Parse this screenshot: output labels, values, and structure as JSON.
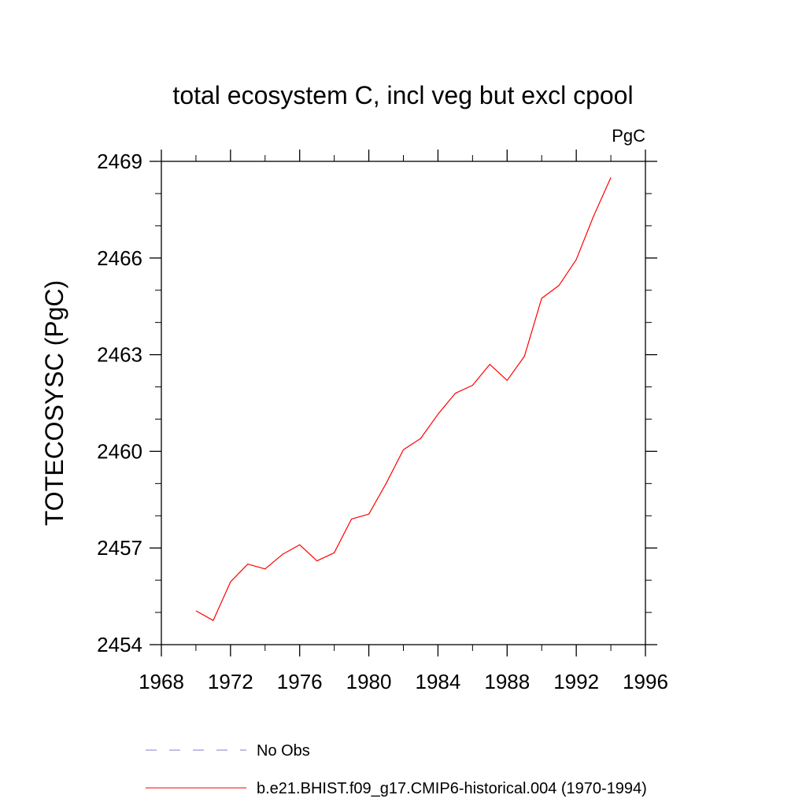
{
  "chart_data": {
    "type": "line",
    "title": "total ecosystem C, incl veg but excl cpool",
    "units": "PgC",
    "ylabel": "TOTECOSYSC  (PgC)",
    "xlabel": "",
    "xlim": [
      1968,
      1996
    ],
    "ylim": [
      2454,
      2469
    ],
    "xticks": [
      1968,
      1972,
      1976,
      1980,
      1984,
      1988,
      1992,
      1996
    ],
    "yticks": [
      2454,
      2457,
      2460,
      2463,
      2466,
      2469
    ],
    "x_minor_step": 2,
    "y_minor_step": 1,
    "legend_placement": "bottom",
    "series": [
      {
        "name": "b.e21.BHIST.f09_g17.CMIP6-historical.004 (1970-1994)",
        "color": "#ff0000",
        "style": "solid",
        "x": [
          1970,
          1971,
          1972,
          1973,
          1974,
          1975,
          1976,
          1977,
          1978,
          1979,
          1980,
          1981,
          1982,
          1983,
          1984,
          1985,
          1986,
          1987,
          1988,
          1989,
          1990,
          1991,
          1992,
          1993,
          1994
        ],
        "y": [
          2455.05,
          2454.75,
          2455.95,
          2456.5,
          2456.35,
          2456.8,
          2457.1,
          2456.6,
          2456.85,
          2457.9,
          2458.05,
          2459.0,
          2460.05,
          2460.4,
          2461.15,
          2461.8,
          2462.05,
          2462.7,
          2462.2,
          2462.95,
          2464.75,
          2465.15,
          2465.95,
          2467.3,
          2468.5
        ]
      }
    ],
    "legend": [
      {
        "label": "No Obs",
        "color": "#8080d0",
        "style": "dashed"
      },
      {
        "label": "b.e21.BHIST.f09_g17.CMIP6-historical.004 (1970-1994)",
        "color": "#ff0000",
        "style": "solid"
      }
    ]
  }
}
